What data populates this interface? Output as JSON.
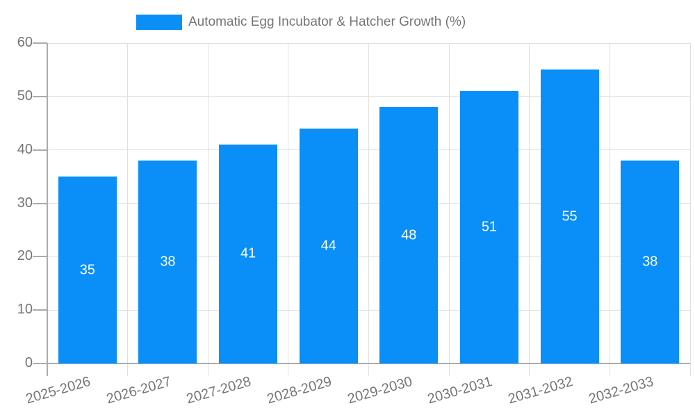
{
  "legend": {
    "label": "Automatic Egg Incubator & Hatcher Growth (%)"
  },
  "chart_data": {
    "type": "bar",
    "title": "Automatic Egg Incubator & Hatcher Growth (%)",
    "categories": [
      "2025-2026",
      "2026-2027",
      "2027-2028",
      "2028-2029",
      "2029-2030",
      "2030-2031",
      "2031-2032",
      "2032-2033"
    ],
    "values": [
      35,
      38,
      41,
      44,
      48,
      51,
      55,
      38
    ],
    "xlabel": "",
    "ylabel": "",
    "ylim": [
      0,
      60
    ],
    "yticks": [
      0,
      10,
      20,
      30,
      40,
      50,
      60
    ],
    "grid": true,
    "legend_position": "top",
    "bar_color": "#0a8ef8",
    "bar_label_color": "#ffffff",
    "axis_text_color": "#757575",
    "grid_color": "#e0e0e0",
    "axis_line_color": "#ababab"
  }
}
